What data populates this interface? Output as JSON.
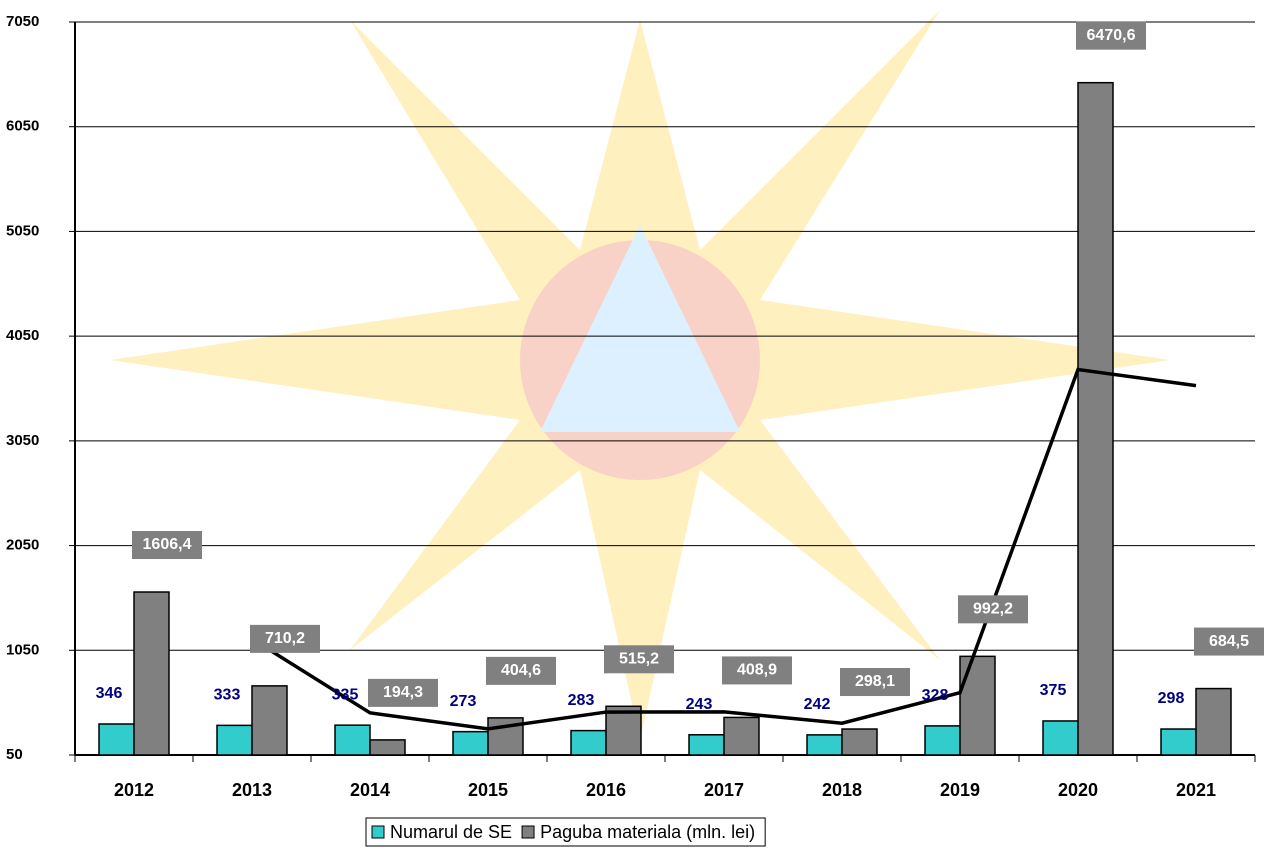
{
  "chart_data": {
    "type": "bar",
    "categories": [
      "2012",
      "2013",
      "2014",
      "2015",
      "2016",
      "2017",
      "2018",
      "2019",
      "2020",
      "2021"
    ],
    "series": [
      {
        "name": "Numarul de SE",
        "color": "#33cccc",
        "values": [
          346,
          333,
          335,
          273,
          283,
          243,
          242,
          328,
          375,
          298
        ]
      },
      {
        "name": "Paguba materiala (mln. lei)",
        "color": "#808080",
        "values": [
          1606.4,
          710.2,
          194.3,
          404.6,
          515.2,
          408.9,
          298.1,
          992.2,
          6470.6,
          684.5
        ],
        "value_labels": [
          "1606,4",
          "710,2",
          "194,3",
          "404,6",
          "515,2",
          "408,9",
          "298,1",
          "992,2",
          "6470,6",
          "684,5"
        ]
      },
      {
        "type": "line",
        "color": "#000000",
        "values": [
          null,
          1158.3,
          452.3,
          299.5,
          459.9,
          462.1,
          353.5,
          645.2,
          3731.4,
          3577.6
        ]
      }
    ],
    "ylim": [
      50,
      7050
    ],
    "yticks": [
      50,
      1050,
      2050,
      3050,
      4050,
      5050,
      6050,
      7050
    ],
    "grid": true
  }
}
